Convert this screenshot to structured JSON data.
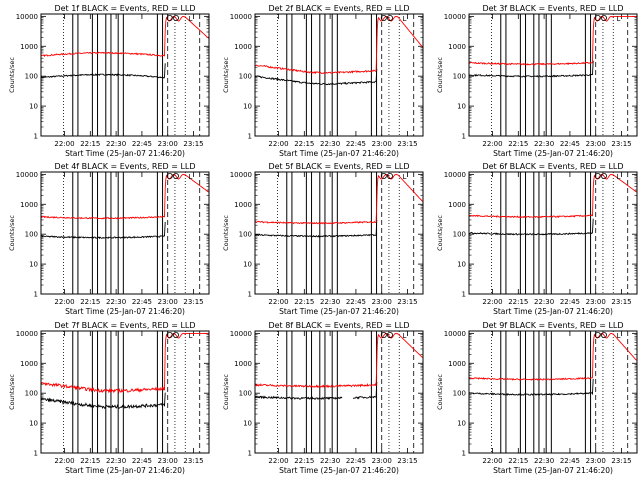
{
  "chart_data": {
    "type": "line",
    "layout": "3x3 grid of panels",
    "shared": {
      "xlabel": "Start Time (25-Jan-07 21:46:20)",
      "ylabel": "Counts/sec",
      "x_ticks": [
        "22:00",
        "22:15",
        "22:30",
        "22:45",
        "23:00",
        "23:15"
      ],
      "x_tick_hours": [
        22.0,
        22.25,
        22.5,
        22.75,
        23.0,
        23.25
      ],
      "xlim_hours": [
        21.7722,
        23.4
      ],
      "y_ticks": [
        "1",
        "10",
        "100",
        "1000",
        "10000"
      ],
      "y_scale": "log",
      "ylim": [
        1,
        12000
      ],
      "series": [
        {
          "label": "Events",
          "color": "#000000"
        },
        {
          "label": "LLD",
          "color": "#ff0000"
        }
      ],
      "markers": [
        "o",
        "o",
        "L"
      ],
      "marker_hours": [
        23.02,
        23.08,
        23.22
      ]
    },
    "panels": [
      {
        "title": "Det 1f BLACK = Events, RED = LLD",
        "black_base": 90,
        "red_base": 480,
        "shape": "hump",
        "noise": 0.05,
        "gap": null,
        "solid_lines": [
          22.08,
          22.13,
          22.27,
          22.32,
          22.4,
          22.45,
          22.52,
          22.57,
          22.9,
          22.95
        ],
        "dotted_lines": [
          21.99,
          23.07,
          23.17
        ],
        "dashed_lines": [
          23.0,
          23.31
        ],
        "rise_hour": 22.97,
        "red_peak": 10000,
        "red_end": 1800,
        "black_end_hour": 22.98
      },
      {
        "title": "Det 2f BLACK = Events, RED = LLD",
        "black_base": 55,
        "red_base": 130,
        "shape": "dip",
        "noise": 0.06,
        "gap": null,
        "solid_lines": [
          22.08,
          22.13,
          22.27,
          22.32,
          22.4,
          22.45,
          22.52,
          22.57,
          22.9,
          22.95
        ],
        "dotted_lines": [
          21.99,
          23.07,
          23.17
        ],
        "dashed_lines": [
          23.0,
          23.31
        ],
        "rise_hour": 22.95,
        "red_peak": 10000,
        "red_end": 900,
        "black_end_hour": 22.96
      },
      {
        "title": "Det 3f BLACK = Events, RED = LLD",
        "black_base": 110,
        "red_base": 280,
        "shape": "flat",
        "noise": 0.05,
        "gap": null,
        "solid_lines": [
          22.08,
          22.13,
          22.27,
          22.32,
          22.4,
          22.45,
          22.52,
          22.57,
          22.9,
          22.95
        ],
        "dotted_lines": [
          21.99,
          23.07,
          23.17
        ],
        "dashed_lines": [
          23.0,
          23.31
        ],
        "rise_hour": 22.97,
        "red_peak": 10000,
        "red_end": 10000,
        "black_end_hour": 22.98
      },
      {
        "title": "Det 4f BLACK = Events, RED = LLD",
        "black_base": 85,
        "red_base": 380,
        "shape": "flat",
        "noise": 0.05,
        "gap": null,
        "solid_lines": [
          22.08,
          22.13,
          22.27,
          22.32,
          22.4,
          22.45,
          22.52,
          22.57,
          22.9,
          22.95
        ],
        "dotted_lines": [
          21.99,
          23.07,
          23.17
        ],
        "dashed_lines": [
          23.0,
          23.31
        ],
        "rise_hour": 22.97,
        "red_peak": 10000,
        "red_end": 2500,
        "black_end_hour": 22.98
      },
      {
        "title": "Det 5f BLACK = Events, RED = LLD",
        "black_base": 95,
        "red_base": 260,
        "shape": "flat",
        "noise": 0.05,
        "gap": null,
        "solid_lines": [
          22.08,
          22.13,
          22.27,
          22.32,
          22.4,
          22.45,
          22.52,
          22.57,
          22.9,
          22.95
        ],
        "dotted_lines": [
          21.99,
          23.07,
          23.17
        ],
        "dashed_lines": [
          23.0,
          23.31
        ],
        "rise_hour": 22.95,
        "red_peak": 10000,
        "red_end": 1200,
        "black_end_hour": 22.96
      },
      {
        "title": "Det 6f BLACK = Events, RED = LLD",
        "black_base": 110,
        "red_base": 420,
        "shape": "flat",
        "noise": 0.05,
        "gap": null,
        "solid_lines": [
          22.08,
          22.13,
          22.27,
          22.32,
          22.4,
          22.45,
          22.52,
          22.57,
          22.9,
          22.95
        ],
        "dotted_lines": [
          21.99,
          23.07,
          23.17
        ],
        "dashed_lines": [
          23.0,
          23.31
        ],
        "rise_hour": 22.97,
        "red_peak": 10000,
        "red_end": 2500,
        "black_end_hour": 22.98
      },
      {
        "title": "Det 7f BLACK = Events, RED = LLD",
        "black_base": 35,
        "red_base": 120,
        "shape": "dip",
        "noise": 0.12,
        "gap": null,
        "solid_lines": [
          22.08,
          22.13,
          22.27,
          22.32,
          22.4,
          22.45,
          22.52,
          22.57,
          22.9,
          22.95
        ],
        "dotted_lines": [
          21.99,
          23.07,
          23.17
        ],
        "dashed_lines": [
          23.0,
          23.31
        ],
        "rise_hour": 22.97,
        "red_peak": 10000,
        "red_end": 10000,
        "black_end_hour": 22.98
      },
      {
        "title": "Det 8f BLACK = Events, RED = LLD",
        "black_base": 75,
        "red_base": 190,
        "shape": "flat",
        "noise": 0.07,
        "gap": [
          22.62,
          22.72
        ],
        "solid_lines": [
          22.08,
          22.13,
          22.27,
          22.32,
          22.4,
          22.45,
          22.52,
          22.57,
          22.9,
          22.95
        ],
        "dotted_lines": [
          21.99,
          23.07,
          23.17
        ],
        "dashed_lines": [
          23.0,
          23.31
        ],
        "rise_hour": 22.95,
        "red_peak": 10000,
        "red_end": 1500,
        "black_end_hour": 22.96
      },
      {
        "title": "Det 9f BLACK = Events, RED = LLD",
        "black_base": 100,
        "red_base": 320,
        "shape": "flat",
        "noise": 0.05,
        "gap": null,
        "solid_lines": [
          22.08,
          22.13,
          22.27,
          22.32,
          22.4,
          22.45,
          22.52,
          22.57,
          22.9,
          22.95
        ],
        "dotted_lines": [
          21.99,
          23.07,
          23.17
        ],
        "dashed_lines": [
          23.0,
          23.31
        ],
        "rise_hour": 22.97,
        "red_peak": 10000,
        "red_end": 1200,
        "black_end_hour": 22.98
      }
    ]
  }
}
